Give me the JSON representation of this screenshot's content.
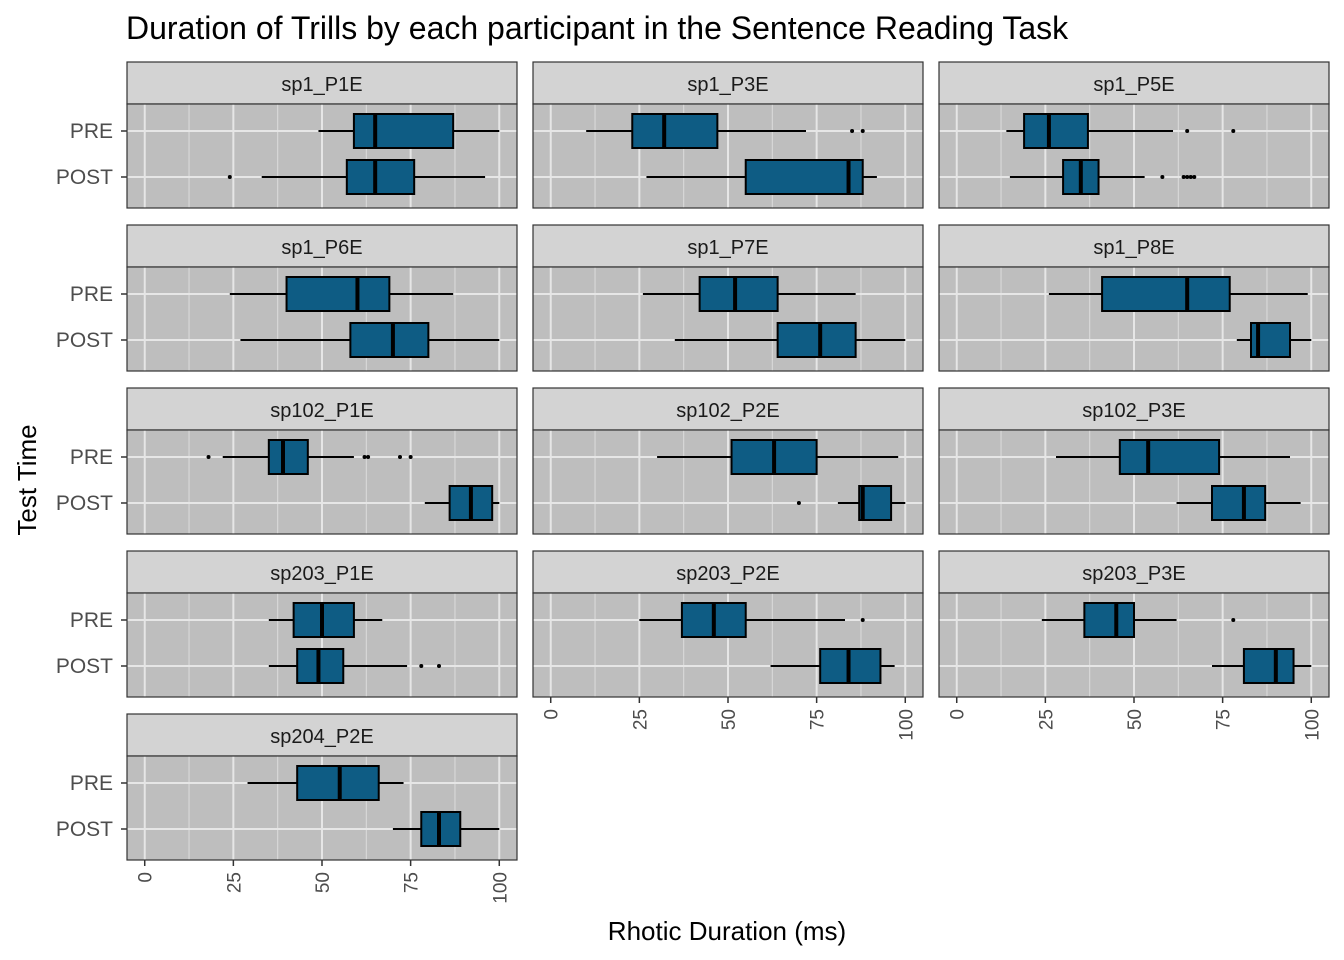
{
  "chart_data": {
    "type": "boxplot",
    "title": "Duration of Trills by each participant in the Sentence Reading Task",
    "xlabel": "Rhotic Duration (ms)",
    "ylabel": "Test Time",
    "xlim": [
      0,
      100
    ],
    "x_ticks": [
      "0",
      "25",
      "50",
      "75",
      "100"
    ],
    "categories": [
      "PRE",
      "POST"
    ],
    "fill_color": "#0e5c84",
    "panel_background": "#bebebe",
    "strip_background": "#d3d3d3",
    "grid": true,
    "panels": [
      {
        "label": "sp1_P1E",
        "boxes": [
          {
            "time": "PRE",
            "whisker_low": 49,
            "q1": 59,
            "median": 65,
            "q3": 87,
            "whisker_high": 100,
            "outliers": []
          },
          {
            "time": "POST",
            "whisker_low": 33,
            "q1": 57,
            "median": 65,
            "q3": 76,
            "whisker_high": 96,
            "outliers": [
              24
            ]
          }
        ]
      },
      {
        "label": "sp1_P3E",
        "boxes": [
          {
            "time": "PRE",
            "whisker_low": 10,
            "q1": 23,
            "median": 32,
            "q3": 47,
            "whisker_high": 72,
            "outliers": [
              85,
              88
            ]
          },
          {
            "time": "POST",
            "whisker_low": 27,
            "q1": 55,
            "median": 84,
            "q3": 88,
            "whisker_high": 92,
            "outliers": []
          }
        ]
      },
      {
        "label": "sp1_P5E",
        "boxes": [
          {
            "time": "PRE",
            "whisker_low": 14,
            "q1": 19,
            "median": 26,
            "q3": 37,
            "whisker_high": 61,
            "outliers": [
              65,
              78
            ]
          },
          {
            "time": "POST",
            "whisker_low": 15,
            "q1": 30,
            "median": 35,
            "q3": 40,
            "whisker_high": 53,
            "outliers": [
              58,
              64,
              65,
              66,
              67
            ]
          }
        ]
      },
      {
        "label": "sp1_P6E",
        "boxes": [
          {
            "time": "PRE",
            "whisker_low": 24,
            "q1": 40,
            "median": 60,
            "q3": 69,
            "whisker_high": 87,
            "outliers": []
          },
          {
            "time": "POST",
            "whisker_low": 27,
            "q1": 58,
            "median": 70,
            "q3": 80,
            "whisker_high": 100,
            "outliers": []
          }
        ]
      },
      {
        "label": "sp1_P7E",
        "boxes": [
          {
            "time": "PRE",
            "whisker_low": 26,
            "q1": 42,
            "median": 52,
            "q3": 64,
            "whisker_high": 86,
            "outliers": []
          },
          {
            "time": "POST",
            "whisker_low": 35,
            "q1": 64,
            "median": 76,
            "q3": 86,
            "whisker_high": 100,
            "outliers": []
          }
        ]
      },
      {
        "label": "sp1_P8E",
        "boxes": [
          {
            "time": "PRE",
            "whisker_low": 26,
            "q1": 41,
            "median": 65,
            "q3": 77,
            "whisker_high": 99,
            "outliers": []
          },
          {
            "time": "POST",
            "whisker_low": 79,
            "q1": 83,
            "median": 85,
            "q3": 94,
            "whisker_high": 100,
            "outliers": []
          }
        ]
      },
      {
        "label": "sp102_P1E",
        "boxes": [
          {
            "time": "PRE",
            "whisker_low": 22,
            "q1": 35,
            "median": 39,
            "q3": 46,
            "whisker_high": 59,
            "outliers": [
              18,
              62,
              63,
              72,
              75
            ]
          },
          {
            "time": "POST",
            "whisker_low": 79,
            "q1": 86,
            "median": 92,
            "q3": 98,
            "whisker_high": 100,
            "outliers": []
          }
        ]
      },
      {
        "label": "sp102_P2E",
        "boxes": [
          {
            "time": "PRE",
            "whisker_low": 30,
            "q1": 51,
            "median": 63,
            "q3": 75,
            "whisker_high": 98,
            "outliers": []
          },
          {
            "time": "POST",
            "whisker_low": 81,
            "q1": 87,
            "median": 88,
            "q3": 96,
            "whisker_high": 100,
            "outliers": [
              70
            ]
          }
        ]
      },
      {
        "label": "sp102_P3E",
        "boxes": [
          {
            "time": "PRE",
            "whisker_low": 28,
            "q1": 46,
            "median": 54,
            "q3": 74,
            "whisker_high": 94,
            "outliers": []
          },
          {
            "time": "POST",
            "whisker_low": 62,
            "q1": 72,
            "median": 81,
            "q3": 87,
            "whisker_high": 97,
            "outliers": []
          }
        ]
      },
      {
        "label": "sp203_P1E",
        "boxes": [
          {
            "time": "PRE",
            "whisker_low": 35,
            "q1": 42,
            "median": 50,
            "q3": 59,
            "whisker_high": 67,
            "outliers": []
          },
          {
            "time": "POST",
            "whisker_low": 35,
            "q1": 43,
            "median": 49,
            "q3": 56,
            "whisker_high": 74,
            "outliers": [
              78,
              83
            ]
          }
        ]
      },
      {
        "label": "sp203_P2E",
        "boxes": [
          {
            "time": "PRE",
            "whisker_low": 25,
            "q1": 37,
            "median": 46,
            "q3": 55,
            "whisker_high": 83,
            "outliers": [
              88
            ]
          },
          {
            "time": "POST",
            "whisker_low": 62,
            "q1": 76,
            "median": 84,
            "q3": 93,
            "whisker_high": 97,
            "outliers": []
          }
        ]
      },
      {
        "label": "sp203_P3E",
        "boxes": [
          {
            "time": "PRE",
            "whisker_low": 24,
            "q1": 36,
            "median": 45,
            "q3": 50,
            "whisker_high": 62,
            "outliers": [
              78
            ]
          },
          {
            "time": "POST",
            "whisker_low": 72,
            "q1": 81,
            "median": 90,
            "q3": 95,
            "whisker_high": 100,
            "outliers": []
          }
        ]
      },
      {
        "label": "sp204_P2E",
        "boxes": [
          {
            "time": "PRE",
            "whisker_low": 29,
            "q1": 43,
            "median": 55,
            "q3": 66,
            "whisker_high": 73,
            "outliers": []
          },
          {
            "time": "POST",
            "whisker_low": 70,
            "q1": 78,
            "median": 83,
            "q3": 89,
            "whisker_high": 100,
            "outliers": []
          }
        ]
      }
    ]
  }
}
